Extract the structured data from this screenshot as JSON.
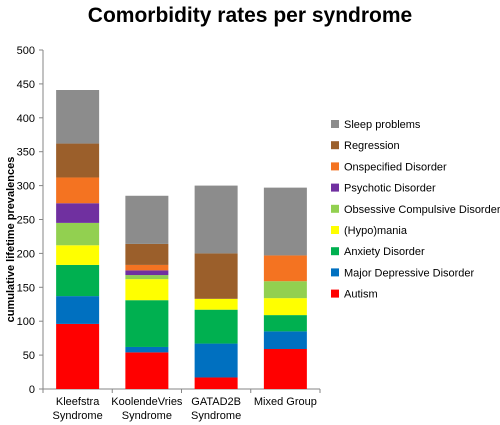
{
  "chart_data": {
    "type": "bar",
    "stacked": true,
    "title": "Comorbidity rates per syndrome",
    "xlabel": "",
    "ylabel": "cumulative lifetime prevalences",
    "ylim": [
      0,
      500
    ],
    "yticks": [
      0,
      50,
      100,
      150,
      200,
      250,
      300,
      350,
      400,
      450,
      500
    ],
    "grid": false,
    "legend_position": "right",
    "categories": [
      [
        "Kleefstra",
        "Syndrome"
      ],
      [
        "KoolendeVries",
        "Syndrome"
      ],
      [
        "GATAD2B",
        "Syndrome"
      ],
      [
        "Mixed Group"
      ]
    ],
    "series": [
      {
        "name": "Autism",
        "color": "#ff0000",
        "values": [
          96,
          54,
          17,
          59
        ]
      },
      {
        "name": "Major Depressive Disorder",
        "color": "#0070c0",
        "values": [
          41,
          8,
          50,
          26
        ]
      },
      {
        "name": "Anxiety Disorder",
        "color": "#00b050",
        "values": [
          46,
          69,
          50,
          24
        ]
      },
      {
        "name": "(Hypo)mania",
        "color": "#ffff00",
        "values": [
          29,
          31,
          16,
          25
        ]
      },
      {
        "name": "Obsessive Compulsive Disorder",
        "color": "#92d050",
        "values": [
          33,
          6,
          0,
          25
        ]
      },
      {
        "name": "Psychotic Disorder",
        "color": "#7030a0",
        "values": [
          29,
          7,
          0,
          0
        ]
      },
      {
        "name": "Onspecified Disorder",
        "color": "#f47321",
        "values": [
          38,
          8,
          0,
          38
        ]
      },
      {
        "name": "Regression",
        "color": "#9b5f2b",
        "values": [
          50,
          31,
          67,
          0
        ]
      },
      {
        "name": "Sleep problems",
        "color": "#8c8c8c",
        "values": [
          79,
          71,
          100,
          100
        ]
      }
    ]
  }
}
